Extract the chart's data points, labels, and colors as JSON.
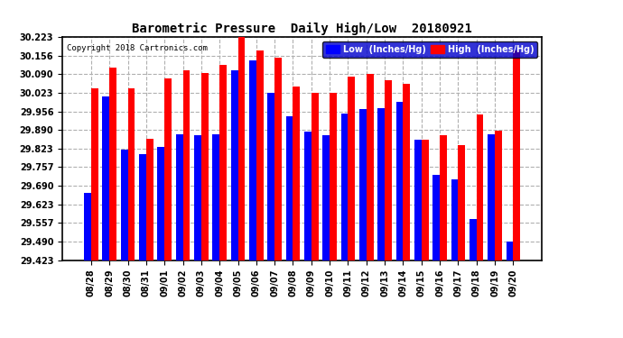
{
  "title": "Barometric Pressure  Daily High/Low  20180921",
  "copyright": "Copyright 2018 Cartronics.com",
  "legend_low": "Low  (Inches/Hg)",
  "legend_high": "High  (Inches/Hg)",
  "background_color": "#ffffff",
  "plot_background": "#ffffff",
  "bar_color_low": "#0000ff",
  "bar_color_high": "#ff0000",
  "grid_color": "#b0b0b0",
  "ylim_min": 29.423,
  "ylim_max": 30.223,
  "yticks": [
    29.423,
    29.49,
    29.557,
    29.623,
    29.69,
    29.757,
    29.823,
    29.89,
    29.956,
    30.023,
    30.09,
    30.156,
    30.223
  ],
  "dates": [
    "08/28",
    "08/29",
    "08/30",
    "08/31",
    "09/01",
    "09/02",
    "09/03",
    "09/04",
    "09/05",
    "09/06",
    "09/07",
    "09/08",
    "09/09",
    "09/10",
    "09/11",
    "09/12",
    "09/13",
    "09/14",
    "09/15",
    "09/16",
    "09/17",
    "09/18",
    "09/19",
    "09/20"
  ],
  "low_values": [
    29.665,
    30.01,
    29.82,
    29.803,
    29.83,
    29.875,
    29.87,
    29.875,
    30.105,
    30.14,
    30.025,
    29.94,
    29.885,
    29.87,
    29.95,
    29.965,
    29.97,
    29.99,
    29.855,
    29.73,
    29.713,
    29.57,
    29.875,
    29.49
  ],
  "high_values": [
    30.04,
    30.115,
    30.04,
    29.858,
    30.075,
    30.105,
    30.095,
    30.125,
    30.225,
    30.175,
    30.15,
    30.045,
    30.025,
    30.023,
    30.08,
    30.09,
    30.07,
    30.055,
    29.855,
    29.87,
    29.835,
    29.945,
    29.888,
    30.175
  ]
}
